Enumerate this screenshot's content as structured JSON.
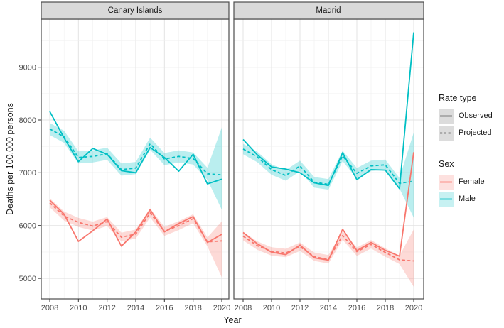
{
  "colors": {
    "female": "#F8766D",
    "male": "#00BFC4",
    "female_ribbon": "rgba(248,118,109,0.27)",
    "male_ribbon": "rgba(0,191,196,0.27)",
    "strip_bg": "#D9D9D9",
    "panel_border": "#4D4D4D",
    "grid_major": "#E3E3E3",
    "grid_minor": "#F0F0F0",
    "tick_label": "#4D4D4D",
    "legend_key_bg": "#DCDCDC"
  },
  "legend": {
    "rate_type": {
      "title": "Rate type",
      "items": [
        {
          "label": "Observed",
          "style": "solid"
        },
        {
          "label": "Projected",
          "style": "dashed"
        }
      ]
    },
    "sex": {
      "title": "Sex",
      "items": [
        {
          "label": "Female",
          "color": "#F8766D"
        },
        {
          "label": "Male",
          "color": "#00BFC4"
        }
      ]
    }
  },
  "chart_data": {
    "type": "line",
    "title": "",
    "xlabel": "Year",
    "ylabel": "Deaths per 100,000 persons",
    "x": [
      2008,
      2009,
      2010,
      2011,
      2012,
      2013,
      2014,
      2015,
      2016,
      2017,
      2018,
      2019,
      2020
    ],
    "x_ticks": [
      2008,
      2010,
      2012,
      2014,
      2016,
      2018,
      2020
    ],
    "y_ticks": [
      5000,
      6000,
      7000,
      8000,
      9000
    ],
    "y_minor_ticks": [
      5500,
      6500,
      7500,
      8500,
      9500
    ],
    "ylim": [
      4610,
      9910
    ],
    "grid": true,
    "legend_position": "right",
    "facets": [
      {
        "label": "Canary Islands",
        "series": [
          {
            "name": "Male Projected",
            "sex": "Male",
            "rate_type": "Projected",
            "style": "dashed",
            "color": "#00BFC4",
            "ribbon_fill": "rgba(0,191,196,0.27)",
            "values": [
              7830,
              7680,
              7290,
              7310,
              7360,
              7060,
              7090,
              7550,
              7260,
              7310,
              7270,
              6980,
              6960
            ],
            "ribbon_lower": [
              7715,
              7565,
              7175,
              7195,
              7245,
              6945,
              6975,
              7435,
              7145,
              7195,
              7155,
              6865,
              6300
            ],
            "ribbon_upper": [
              7945,
              7795,
              7405,
              7425,
              7475,
              7175,
              7205,
              7665,
              7375,
              7425,
              7385,
              7095,
              7860
            ]
          },
          {
            "name": "Female Projected",
            "sex": "Female",
            "rate_type": "Projected",
            "style": "dashed",
            "color": "#F8766D",
            "ribbon_fill": "rgba(248,118,109,0.27)",
            "values": [
              6430,
              6180,
              6060,
              5990,
              6075,
              5780,
              5840,
              6240,
              5890,
              6000,
              6130,
              5690,
              5710
            ],
            "ribbon_lower": [
              6345,
              6095,
              5975,
              5905,
              5990,
              5695,
              5755,
              6155,
              5805,
              5915,
              6045,
              5605,
              5020
            ],
            "ribbon_upper": [
              6515,
              6265,
              6145,
              6075,
              6160,
              5865,
              5925,
              6325,
              5975,
              6085,
              6215,
              5775,
              6080
            ]
          },
          {
            "name": "Male Observed",
            "sex": "Male",
            "rate_type": "Observed",
            "style": "solid",
            "color": "#00BFC4",
            "values": [
              8160,
              7660,
              7210,
              7460,
              7350,
              7040,
              7000,
              7480,
              7290,
              7030,
              7350,
              6790,
              6880
            ]
          },
          {
            "name": "Female Observed",
            "sex": "Female",
            "rate_type": "Observed",
            "style": "solid",
            "color": "#F8766D",
            "values": [
              6480,
              6215,
              5700,
              5900,
              6125,
              5610,
              5880,
              6300,
              5880,
              6040,
              6170,
              5680,
              5835
            ]
          }
        ]
      },
      {
        "label": "Madrid",
        "series": [
          {
            "name": "Male Projected",
            "sex": "Male",
            "rate_type": "Projected",
            "style": "dashed",
            "color": "#00BFC4",
            "ribbon_fill": "rgba(0,191,196,0.27)",
            "values": [
              7450,
              7300,
              7060,
              6950,
              7130,
              6820,
              6780,
              7320,
              6990,
              7130,
              7150,
              6800,
              6840
            ],
            "ribbon_lower": [
              7350,
              7200,
              6960,
              6850,
              7030,
              6720,
              6680,
              7220,
              6890,
              7030,
              7050,
              6700,
              6150
            ],
            "ribbon_upper": [
              7550,
              7400,
              7160,
              7050,
              7230,
              6920,
              6880,
              7420,
              7090,
              7230,
              7250,
              6900,
              7760
            ]
          },
          {
            "name": "Female Projected",
            "sex": "Female",
            "rate_type": "Projected",
            "style": "dashed",
            "color": "#F8766D",
            "ribbon_fill": "rgba(248,118,109,0.27)",
            "values": [
              5800,
              5620,
              5510,
              5480,
              5600,
              5410,
              5360,
              5810,
              5505,
              5645,
              5490,
              5350,
              5330
            ],
            "ribbon_lower": [
              5720,
              5540,
              5430,
              5400,
              5520,
              5330,
              5280,
              5730,
              5425,
              5565,
              5410,
              5270,
              4840
            ],
            "ribbon_upper": [
              5880,
              5700,
              5590,
              5560,
              5680,
              5490,
              5440,
              5890,
              5585,
              5725,
              5570,
              5430,
              5925
            ]
          },
          {
            "name": "Male Observed",
            "sex": "Male",
            "rate_type": "Observed",
            "style": "solid",
            "color": "#00BFC4",
            "values": [
              7630,
              7340,
              7110,
              7070,
              7000,
              6810,
              6760,
              7380,
              6870,
              7060,
              7050,
              6700,
              9660
            ]
          },
          {
            "name": "Female Observed",
            "sex": "Female",
            "rate_type": "Observed",
            "style": "solid",
            "color": "#F8766D",
            "values": [
              5870,
              5655,
              5495,
              5450,
              5630,
              5390,
              5345,
              5930,
              5525,
              5680,
              5530,
              5420,
              7390
            ]
          }
        ]
      }
    ]
  }
}
